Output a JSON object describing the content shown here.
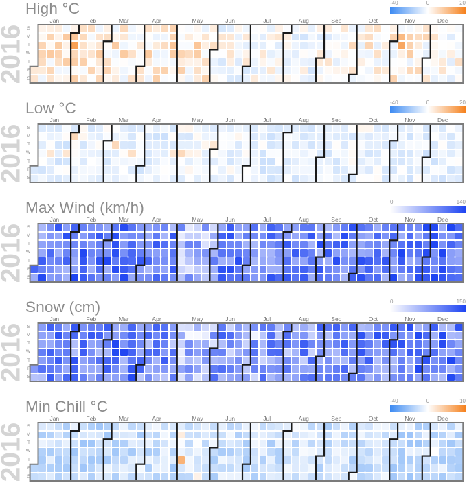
{
  "chart_data": {
    "type": "heatmap",
    "subtype": "calendar-heatmap",
    "year": "2016",
    "layout": "5 stacked calendar heatmaps, one per weather metric; columns are weeks of 2016, rows are weekdays Sunday-Saturday; black stepped lines separate months; gray stepped outline around year; legend gradient bar at top-right of each panel",
    "day_labels": [
      "S",
      "M",
      "T",
      "W",
      "T",
      "F",
      "S"
    ],
    "month_labels": [
      "Jan",
      "Feb",
      "Mar",
      "Apr",
      "May",
      "Jun",
      "Jul",
      "Aug",
      "Sep",
      "Oct",
      "Nov",
      "Dec"
    ],
    "colors": {
      "diverging_low": "#3c8af2",
      "diverging_mid": "#ffffff",
      "diverging_high": "#f5811d",
      "sequential_low": "#ffffff",
      "sequential_high": "#1f45f2",
      "title_gray": "#8b8b8b",
      "year_gray": "#d4d4d4",
      "outline_gray": "#7b7b7b",
      "month_line_black": "#1a1a1a"
    },
    "metrics": [
      {
        "id": "high",
        "title": "High °C",
        "scale": "diverging",
        "domain": [
          -40,
          0,
          20
        ],
        "legend_ticks": [
          "-40",
          "0",
          "20"
        ],
        "monthly_mean_estimate": [
          2,
          2,
          2,
          2,
          1,
          -2,
          -2,
          -3,
          -2,
          1,
          1,
          -1
        ],
        "spread_estimate": 6.5,
        "notable_values_estimate": {
          "01-19": 8,
          "01-20": 7,
          "02-01": 9,
          "02-02": 15,
          "04-26": 9,
          "04-27": 8,
          "05-17": 9,
          "05-18": 8,
          "09-27": 6,
          "10-31": 7,
          "11-07": 11,
          "11-08": 14,
          "11-16": 8
        }
      },
      {
        "id": "low",
        "title": "Low °C",
        "scale": "diverging",
        "domain": [
          -40,
          0,
          20
        ],
        "legend_ticks": [
          "-40",
          "0",
          "20"
        ],
        "monthly_mean_estimate": [
          -5,
          -4,
          -4,
          -5,
          -3,
          -4,
          -5,
          -5,
          -4,
          -4,
          -5,
          -5
        ],
        "spread_estimate": 5.5,
        "notable_values_estimate": {
          "01-13": 4,
          "01-27": 4,
          "02-01": 6,
          "03-08": 6,
          "03-23": 5,
          "04-27": 4,
          "05-04": 6,
          "05-31": 4
        }
      },
      {
        "id": "max-wind",
        "title": "Max Wind (km/h)",
        "scale": "sequential",
        "domain": [
          0,
          140
        ],
        "legend_ticks": [
          "0",
          "140"
        ],
        "monthly_mean_estimate": [
          95,
          100,
          98,
          88,
          55,
          92,
          88,
          85,
          92,
          95,
          102,
          105
        ],
        "spread_estimate": 42,
        "notable_values_estimate": {
          "05-02": 15,
          "08-30": 135
        }
      },
      {
        "id": "snow",
        "title": "Snow (cm)",
        "scale": "sequential",
        "domain": [
          0,
          150
        ],
        "legend_ticks": [
          "0",
          "150"
        ],
        "monthly_mean_estimate": [
          92,
          98,
          102,
          88,
          52,
          80,
          75,
          82,
          88,
          95,
          102,
          100
        ],
        "spread_estimate": 48,
        "notable_values_estimate": {
          "05-09": 5,
          "07-04": 10,
          "10-17": 140
        }
      },
      {
        "id": "min-chill",
        "title": "Min Chill °C",
        "scale": "diverging",
        "domain": [
          -40,
          0,
          10
        ],
        "legend_ticks": [
          "-40",
          "0",
          "10"
        ],
        "monthly_mean_estimate": [
          -11,
          -12,
          -11,
          -10,
          -6,
          -10,
          -10,
          -9,
          -10,
          -10,
          -12,
          -11
        ],
        "spread_estimate": 8,
        "notable_values_estimate": {
          "04-29": -20,
          "05-03": -1,
          "05-05": 6,
          "12-07": 0
        }
      }
    ]
  }
}
